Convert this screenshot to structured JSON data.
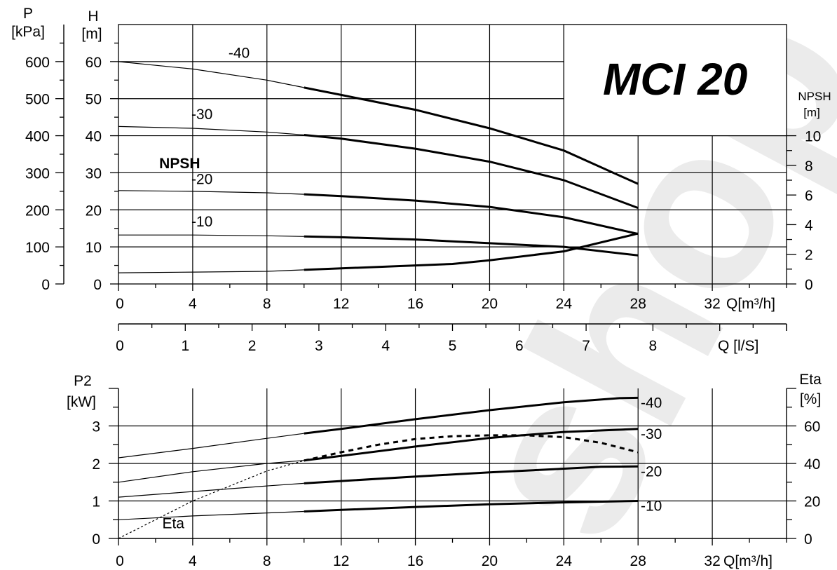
{
  "chart_data": [
    {
      "type": "line",
      "title": "MCI 20",
      "x_axis_label": "Q[m³/h]",
      "x_ticks": [
        0,
        4,
        8,
        12,
        16,
        20,
        24,
        28,
        32
      ],
      "xlim": [
        0,
        36
      ],
      "secondary_x_axis_label": "Q [l/S]",
      "secondary_x_ticks": [
        0,
        1,
        2,
        3,
        4,
        5,
        6,
        7,
        8
      ],
      "left_axis_P_label": [
        "P",
        "[kPa]"
      ],
      "left_axis_P_ticks": [
        0,
        100,
        200,
        300,
        400,
        500,
        600
      ],
      "left_axis_H_label": [
        "H",
        "[m]"
      ],
      "left_axis_H_ticks": [
        0,
        10,
        20,
        30,
        40,
        50,
        60
      ],
      "ylim": [
        0,
        70
      ],
      "right_axis_label": [
        "NPSH",
        "[m]"
      ],
      "right_axis_ticks": [
        0,
        2,
        4,
        6,
        8,
        10
      ],
      "right_ylim": [
        0,
        10
      ],
      "series": [
        {
          "name": "-40",
          "label_at": [
            6.5,
            61
          ],
          "x": [
            0,
            4,
            8,
            10,
            12,
            16,
            20,
            24,
            28
          ],
          "y": [
            60,
            58,
            55,
            53,
            51,
            47,
            42,
            36,
            27
          ]
        },
        {
          "name": "-30",
          "label_at": [
            4.5,
            44.5
          ],
          "x": [
            0,
            4,
            8,
            10,
            12,
            16,
            20,
            24,
            28
          ],
          "y": [
            42.5,
            42,
            41,
            40.2,
            39.2,
            36.5,
            33,
            28,
            20.5
          ]
        },
        {
          "name": "-20",
          "label_at": [
            4.5,
            27
          ],
          "x": [
            0,
            4,
            8,
            10,
            12,
            16,
            20,
            24,
            28
          ],
          "y": [
            25.2,
            25,
            24.6,
            24.2,
            23.7,
            22.5,
            20.8,
            18,
            13.5
          ]
        },
        {
          "name": "-10",
          "label_at": [
            4.5,
            15.5
          ],
          "x": [
            0,
            4,
            8,
            10,
            12,
            16,
            20,
            24,
            28
          ],
          "y": [
            13.2,
            13.2,
            13,
            12.8,
            12.6,
            12,
            11,
            10,
            7.7
          ]
        },
        {
          "name": "NPSH",
          "axis": "right",
          "label_at": [
            3.3,
            7.8
          ],
          "x": [
            0,
            4,
            8,
            10,
            12,
            16,
            18,
            20,
            24,
            28
          ],
          "y": [
            0.75,
            0.8,
            0.85,
            0.95,
            1.05,
            1.25,
            1.35,
            1.6,
            2.2,
            3.4
          ]
        }
      ]
    },
    {
      "type": "line",
      "x_axis_label": "Q[m³/h]",
      "x_ticks": [
        0,
        4,
        8,
        12,
        16,
        20,
        24,
        28,
        32
      ],
      "xlim": [
        0,
        36
      ],
      "left_axis_label": [
        "P2",
        "[kW]"
      ],
      "left_axis_ticks": [
        0,
        1,
        2,
        3
      ],
      "ylim": [
        0,
        4
      ],
      "right_axis_label": [
        "Eta",
        "[%]"
      ],
      "right_axis_ticks": [
        0,
        20,
        40,
        60
      ],
      "right_ylim": [
        0,
        80
      ],
      "series": [
        {
          "name": "-40",
          "x": [
            0,
            4,
            8,
            10,
            12,
            16,
            20,
            24,
            27,
            28
          ],
          "y": [
            2.15,
            2.4,
            2.67,
            2.8,
            2.92,
            3.18,
            3.42,
            3.63,
            3.74,
            3.75
          ]
        },
        {
          "name": "-30",
          "x": [
            0,
            4,
            8,
            10,
            12,
            16,
            20,
            24,
            28
          ],
          "y": [
            1.5,
            1.78,
            2.0,
            2.08,
            2.2,
            2.45,
            2.68,
            2.84,
            2.92
          ]
        },
        {
          "name": "-20",
          "x": [
            0,
            4,
            8,
            10,
            12,
            16,
            20,
            24,
            26,
            28
          ],
          "y": [
            1.1,
            1.25,
            1.4,
            1.47,
            1.53,
            1.65,
            1.76,
            1.86,
            1.91,
            1.92
          ]
        },
        {
          "name": "-10",
          "x": [
            0,
            4,
            8,
            10,
            12,
            16,
            20,
            24,
            28
          ],
          "y": [
            0.5,
            0.6,
            0.68,
            0.72,
            0.76,
            0.84,
            0.91,
            0.96,
            1.0
          ]
        },
        {
          "name": "Eta",
          "axis": "right",
          "label_at": [
            2.2,
            5.5
          ],
          "x": [
            0,
            4,
            8,
            10,
            12,
            14,
            16,
            18,
            20,
            22,
            24,
            26,
            28
          ],
          "y": [
            0,
            20,
            36,
            41.5,
            46,
            50,
            53,
            54.5,
            55,
            55,
            54,
            51,
            46
          ]
        }
      ]
    }
  ],
  "watermark": "shop"
}
